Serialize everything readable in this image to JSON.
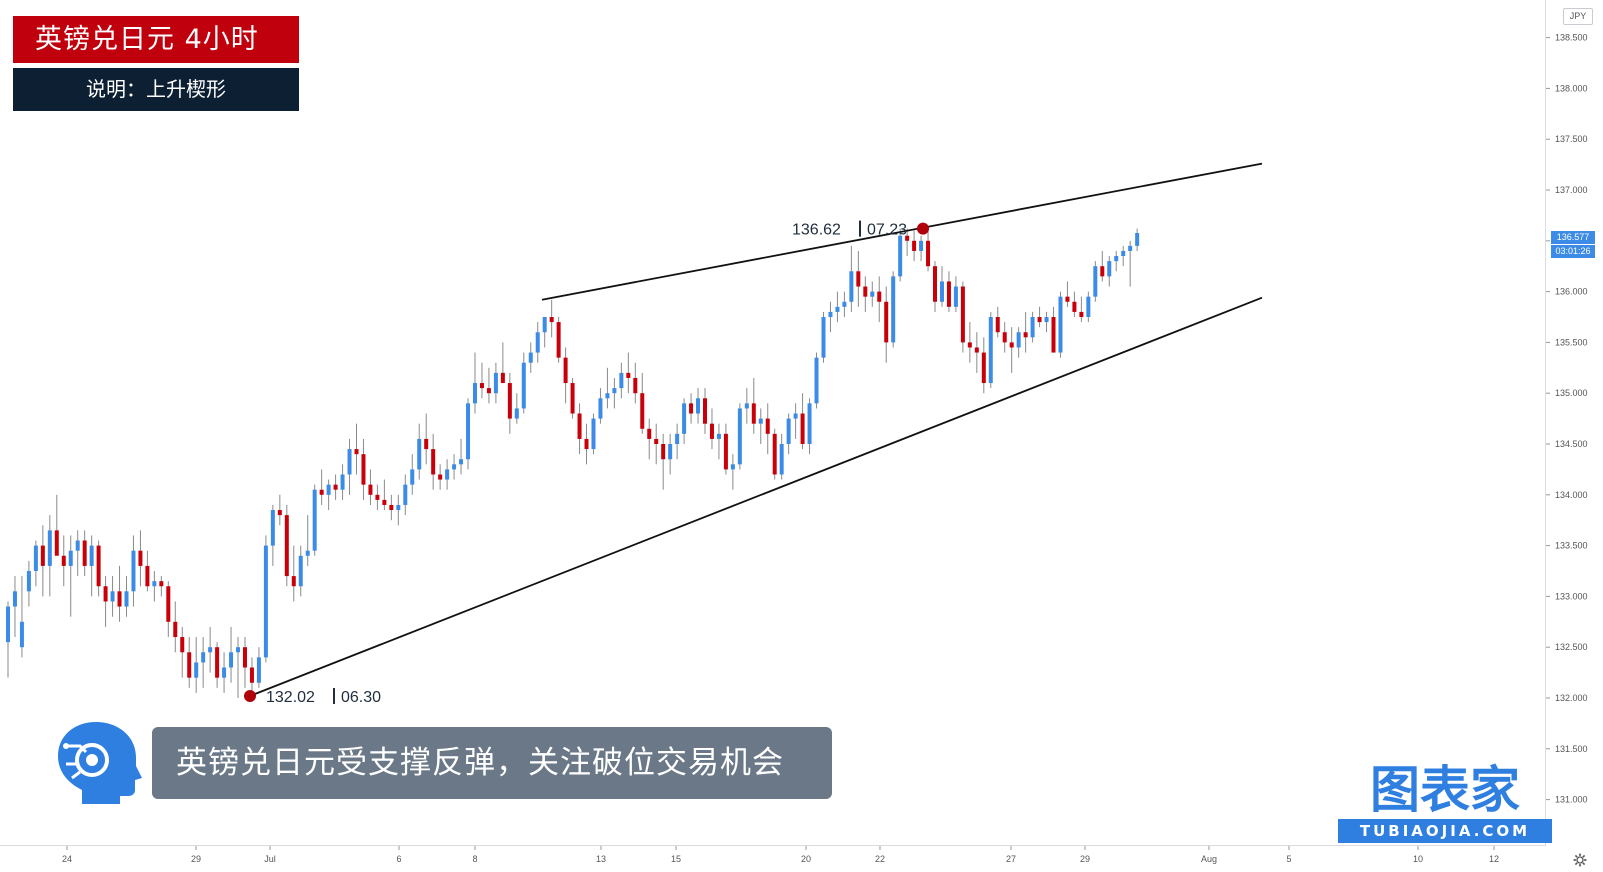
{
  "header": {
    "title": "英镑兑日元  4小时",
    "subtitle": "说明：上升楔形"
  },
  "caption": "英镑兑日元受支撑反弹，关注破位交易机会",
  "logo": {
    "main": "图表家",
    "sub": "TUBIAOJIA.COM"
  },
  "currency_badge": "JPY",
  "price_tags": {
    "last_price": "136.577",
    "countdown": "03:01:26"
  },
  "annotations": {
    "low": {
      "price": "132.02",
      "date": "06.30"
    },
    "high": {
      "price": "136.62",
      "date": "07.23"
    }
  },
  "colors": {
    "up": "#3c8be6",
    "down": "#c8000a",
    "title_bg": "#c0000c",
    "subtitle_bg": "#0c1f33",
    "marker": "#b0000a"
  },
  "chart_data": {
    "type": "candlestick",
    "title": "英镑兑日元  4小时",
    "y_axis": {
      "ticks": [
        "131.000",
        "131.500",
        "132.000",
        "132.500",
        "133.000",
        "133.500",
        "134.000",
        "134.500",
        "135.000",
        "135.500",
        "136.000",
        "136.500",
        "137.000",
        "137.500",
        "138.000",
        "138.500"
      ],
      "range": [
        130.75,
        138.95
      ]
    },
    "x_axis": {
      "ticks": [
        "24",
        "29",
        "Jul",
        "6",
        "8",
        "13",
        "15",
        "20",
        "22",
        "27",
        "29",
        "Aug",
        "5",
        "10",
        "12"
      ]
    },
    "pattern": "上升楔形",
    "trendlines": {
      "upper": [
        {
          "date": "Jul 9",
          "price": 135.92
        },
        {
          "date": "Aug 4",
          "price": 137.26
        }
      ],
      "lower": [
        {
          "date": "Jun 30",
          "price": 132.02
        },
        {
          "date": "Aug 4",
          "price": 135.94
        }
      ]
    },
    "key_points": [
      {
        "label": "132.02",
        "date": "06.30"
      },
      {
        "label": "136.62",
        "date": "07.23"
      }
    ],
    "last_price": 136.577,
    "candles": [
      [
        132.55,
        132.95,
        132.2,
        132.9
      ],
      [
        132.9,
        133.2,
        132.6,
        133.05
      ],
      [
        132.5,
        133.2,
        132.4,
        132.75
      ],
      [
        133.05,
        133.35,
        132.9,
        133.25
      ],
      [
        133.25,
        133.55,
        133.1,
        133.5
      ],
      [
        133.5,
        133.7,
        133.0,
        133.3
      ],
      [
        133.3,
        133.8,
        133.0,
        133.65
      ],
      [
        133.65,
        134.0,
        133.45,
        133.4
      ],
      [
        133.4,
        133.6,
        133.1,
        133.3
      ],
      [
        133.3,
        133.6,
        132.8,
        133.45
      ],
      [
        133.45,
        133.65,
        133.2,
        133.55
      ],
      [
        133.55,
        133.65,
        133.2,
        133.3
      ],
      [
        133.3,
        133.6,
        133.0,
        133.5
      ],
      [
        133.5,
        133.55,
        133.0,
        133.1
      ],
      [
        133.1,
        133.2,
        132.7,
        132.95
      ],
      [
        132.95,
        133.2,
        132.8,
        133.05
      ],
      [
        133.05,
        133.3,
        132.75,
        132.9
      ],
      [
        132.9,
        133.2,
        132.8,
        133.05
      ],
      [
        133.05,
        133.6,
        132.9,
        133.45
      ],
      [
        133.45,
        133.65,
        133.1,
        133.3
      ],
      [
        133.3,
        133.45,
        133.05,
        133.1
      ],
      [
        133.1,
        133.25,
        132.95,
        133.15
      ],
      [
        133.15,
        133.2,
        133.0,
        133.1
      ],
      [
        133.1,
        133.15,
        132.6,
        132.75
      ],
      [
        132.75,
        132.95,
        132.45,
        132.6
      ],
      [
        132.6,
        132.7,
        132.2,
        132.45
      ],
      [
        132.45,
        132.6,
        132.1,
        132.2
      ],
      [
        132.2,
        132.6,
        132.05,
        132.35
      ],
      [
        132.35,
        132.6,
        132.1,
        132.45
      ],
      [
        132.45,
        132.7,
        132.25,
        132.5
      ],
      [
        132.5,
        132.55,
        132.1,
        132.2
      ],
      [
        132.2,
        132.45,
        132.05,
        132.3
      ],
      [
        132.3,
        132.7,
        132.15,
        132.45
      ],
      [
        132.45,
        132.6,
        132.0,
        132.5
      ],
      [
        132.5,
        132.6,
        132.1,
        132.3
      ],
      [
        132.3,
        132.4,
        132.02,
        132.15
      ],
      [
        132.15,
        132.5,
        132.1,
        132.4
      ],
      [
        132.4,
        133.6,
        132.35,
        133.5
      ],
      [
        133.5,
        133.9,
        133.3,
        133.85
      ],
      [
        133.85,
        134.0,
        133.7,
        133.8
      ],
      [
        133.8,
        133.9,
        133.1,
        133.2
      ],
      [
        133.2,
        133.5,
        132.95,
        133.1
      ],
      [
        133.1,
        133.5,
        133.0,
        133.4
      ],
      [
        133.4,
        133.8,
        133.3,
        133.45
      ],
      [
        133.45,
        134.1,
        133.4,
        134.05
      ],
      [
        134.05,
        134.25,
        133.9,
        134.0
      ],
      [
        134.0,
        134.15,
        133.85,
        134.1
      ],
      [
        134.1,
        134.2,
        133.95,
        134.05
      ],
      [
        134.05,
        134.3,
        133.95,
        134.2
      ],
      [
        134.2,
        134.55,
        134.0,
        134.45
      ],
      [
        134.45,
        134.7,
        134.2,
        134.4
      ],
      [
        134.4,
        134.55,
        133.95,
        134.1
      ],
      [
        134.1,
        134.25,
        133.9,
        134.0
      ],
      [
        134.0,
        134.1,
        133.85,
        133.95
      ],
      [
        133.95,
        134.15,
        133.85,
        133.9
      ],
      [
        133.9,
        134.0,
        133.75,
        133.85
      ],
      [
        133.85,
        134.0,
        133.7,
        133.9
      ],
      [
        133.9,
        134.2,
        133.8,
        134.1
      ],
      [
        134.1,
        134.4,
        134.0,
        134.25
      ],
      [
        134.25,
        134.7,
        134.15,
        134.55
      ],
      [
        134.55,
        134.8,
        134.3,
        134.45
      ],
      [
        134.45,
        134.6,
        134.05,
        134.2
      ],
      [
        134.2,
        134.3,
        134.05,
        134.15
      ],
      [
        134.15,
        134.35,
        134.05,
        134.25
      ],
      [
        134.25,
        134.4,
        134.15,
        134.3
      ],
      [
        134.3,
        134.55,
        134.2,
        134.35
      ],
      [
        134.35,
        134.95,
        134.25,
        134.9
      ],
      [
        134.9,
        135.4,
        134.8,
        135.1
      ],
      [
        135.1,
        135.3,
        134.95,
        135.05
      ],
      [
        135.05,
        135.25,
        134.9,
        135.0
      ],
      [
        135.0,
        135.3,
        134.9,
        135.2
      ],
      [
        135.2,
        135.5,
        135.1,
        135.1
      ],
      [
        135.1,
        135.2,
        134.6,
        134.75
      ],
      [
        134.75,
        135.0,
        134.7,
        134.85
      ],
      [
        134.85,
        135.4,
        134.8,
        135.3
      ],
      [
        135.3,
        135.5,
        135.2,
        135.4
      ],
      [
        135.4,
        135.7,
        135.3,
        135.6
      ],
      [
        135.6,
        135.75,
        135.45,
        135.75
      ],
      [
        135.75,
        135.92,
        135.55,
        135.7
      ],
      [
        135.7,
        135.75,
        135.3,
        135.35
      ],
      [
        135.35,
        135.45,
        134.9,
        135.1
      ],
      [
        135.1,
        135.15,
        134.75,
        134.8
      ],
      [
        134.8,
        134.9,
        134.4,
        134.55
      ],
      [
        134.55,
        134.7,
        134.3,
        134.45
      ],
      [
        134.45,
        134.8,
        134.4,
        134.75
      ],
      [
        134.75,
        135.05,
        134.7,
        134.95
      ],
      [
        134.95,
        135.25,
        134.85,
        135.0
      ],
      [
        135.0,
        135.15,
        134.85,
        135.05
      ],
      [
        135.05,
        135.3,
        134.95,
        135.2
      ],
      [
        135.2,
        135.4,
        135.0,
        135.15
      ],
      [
        135.15,
        135.3,
        134.9,
        135.0
      ],
      [
        135.0,
        135.2,
        134.6,
        134.65
      ],
      [
        134.65,
        134.75,
        134.35,
        134.55
      ],
      [
        134.55,
        134.7,
        134.3,
        134.5
      ],
      [
        134.5,
        134.6,
        134.05,
        134.35
      ],
      [
        134.35,
        134.6,
        134.2,
        134.5
      ],
      [
        134.5,
        134.7,
        134.35,
        134.6
      ],
      [
        134.6,
        134.95,
        134.5,
        134.9
      ],
      [
        134.9,
        135.0,
        134.7,
        134.8
      ],
      [
        134.8,
        135.05,
        134.7,
        134.95
      ],
      [
        134.95,
        135.05,
        134.6,
        134.7
      ],
      [
        134.7,
        134.85,
        134.45,
        134.55
      ],
      [
        134.55,
        134.7,
        134.35,
        134.6
      ],
      [
        134.6,
        134.7,
        134.2,
        134.25
      ],
      [
        134.25,
        134.4,
        134.05,
        134.3
      ],
      [
        134.3,
        134.9,
        134.25,
        134.85
      ],
      [
        134.85,
        135.05,
        134.7,
        134.9
      ],
      [
        134.9,
        135.15,
        134.6,
        134.7
      ],
      [
        134.7,
        134.85,
        134.5,
        134.75
      ],
      [
        134.75,
        134.9,
        134.4,
        134.6
      ],
      [
        134.6,
        134.65,
        134.15,
        134.2
      ],
      [
        134.2,
        134.6,
        134.15,
        134.5
      ],
      [
        134.5,
        134.8,
        134.4,
        134.75
      ],
      [
        134.75,
        134.9,
        134.55,
        134.8
      ],
      [
        134.8,
        135.0,
        134.45,
        134.5
      ],
      [
        134.5,
        134.95,
        134.4,
        134.9
      ],
      [
        134.9,
        135.4,
        134.85,
        135.35
      ],
      [
        135.35,
        135.8,
        135.3,
        135.75
      ],
      [
        135.75,
        135.9,
        135.6,
        135.8
      ],
      [
        135.8,
        136.0,
        135.7,
        135.85
      ],
      [
        135.85,
        136.0,
        135.75,
        135.9
      ],
      [
        135.9,
        136.45,
        135.8,
        136.2
      ],
      [
        136.2,
        136.4,
        135.85,
        136.05
      ],
      [
        136.05,
        136.15,
        135.8,
        135.95
      ],
      [
        135.95,
        136.1,
        135.85,
        136.0
      ],
      [
        136.0,
        136.15,
        135.7,
        135.9
      ],
      [
        135.9,
        136.05,
        135.3,
        135.5
      ],
      [
        135.5,
        136.2,
        135.45,
        136.15
      ],
      [
        136.15,
        136.62,
        136.1,
        136.55
      ],
      [
        136.55,
        136.62,
        136.35,
        136.5
      ],
      [
        136.5,
        136.6,
        136.3,
        136.4
      ],
      [
        136.4,
        136.55,
        136.3,
        136.5
      ],
      [
        136.5,
        136.6,
        136.2,
        136.25
      ],
      [
        136.25,
        136.3,
        135.8,
        135.9
      ],
      [
        135.9,
        136.25,
        135.85,
        136.1
      ],
      [
        136.1,
        136.2,
        135.8,
        135.85
      ],
      [
        135.85,
        136.15,
        135.8,
        136.05
      ],
      [
        136.05,
        136.1,
        135.4,
        135.5
      ],
      [
        135.5,
        135.7,
        135.3,
        135.45
      ],
      [
        135.45,
        135.6,
        135.2,
        135.4
      ],
      [
        135.4,
        135.55,
        135.0,
        135.1
      ],
      [
        135.1,
        135.8,
        135.05,
        135.75
      ],
      [
        135.75,
        135.85,
        135.55,
        135.6
      ],
      [
        135.6,
        135.7,
        135.4,
        135.5
      ],
      [
        135.5,
        135.65,
        135.2,
        135.45
      ],
      [
        135.45,
        135.65,
        135.35,
        135.6
      ],
      [
        135.6,
        135.8,
        135.4,
        135.55
      ],
      [
        135.55,
        135.8,
        135.5,
        135.75
      ],
      [
        135.75,
        135.85,
        135.65,
        135.7
      ],
      [
        135.7,
        135.8,
        135.6,
        135.75
      ],
      [
        135.75,
        135.85,
        135.4,
        135.4
      ],
      [
        135.4,
        136.0,
        135.35,
        135.95
      ],
      [
        135.95,
        136.1,
        135.85,
        135.9
      ],
      [
        135.9,
        136.0,
        135.75,
        135.8
      ],
      [
        135.8,
        135.95,
        135.7,
        135.75
      ],
      [
        135.75,
        136.0,
        135.7,
        135.95
      ],
      [
        135.95,
        136.3,
        135.9,
        136.25
      ],
      [
        136.25,
        136.4,
        136.1,
        136.15
      ],
      [
        136.15,
        136.35,
        136.05,
        136.3
      ],
      [
        136.3,
        136.4,
        136.2,
        136.35
      ],
      [
        136.35,
        136.45,
        136.25,
        136.4
      ],
      [
        136.4,
        136.5,
        136.05,
        136.45
      ],
      [
        136.45,
        136.62,
        136.4,
        136.577
      ]
    ]
  }
}
